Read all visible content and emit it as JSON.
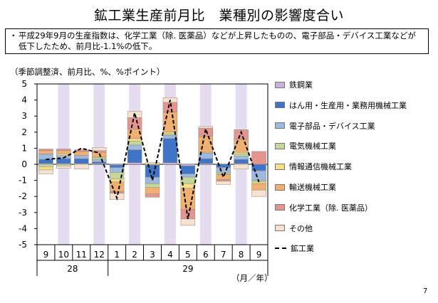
{
  "title": "鉱工業生産前月比　業種別の影響度合い",
  "note": {
    "bullet": "・",
    "text": "平成29年9月の生産指数は、化学工業（除. 医薬品）などが上昇したものの、電子部品・デバイス工業などが低下したため、前月比-1.1%の低下。"
  },
  "unit_label": "（季節調整済、前月比、%、%ポイント）",
  "axis_unit": "（月／年）",
  "page_number": "7",
  "colors": {
    "steel": "#c9b3dd",
    "hanyo": "#3f74c6",
    "electronic": "#9fb8de",
    "electric": "#c5d89a",
    "info": "#f6df86",
    "transport": "#f0b071",
    "chemical": "#e5958f",
    "other": "#f8e2cf",
    "shade": "#e4ddef"
  },
  "chart_data": {
    "type": "bar",
    "stacked": true,
    "ylim": [
      -5,
      5
    ],
    "yticks": [
      "5",
      "4",
      "3",
      "2",
      "1",
      "0",
      "-1",
      "-2",
      "-3",
      "-4",
      "-5"
    ],
    "categories": [
      "9",
      "10",
      "11",
      "12",
      "1",
      "2",
      "3",
      "4",
      "5",
      "6",
      "7",
      "8",
      "9"
    ],
    "year_labels": [
      {
        "label": "28",
        "from": 0,
        "to": 3
      },
      {
        "label": "29",
        "from": 4,
        "to": 12
      }
    ],
    "shaded_columns": [
      1,
      3,
      5,
      7,
      9,
      11
    ],
    "series": [
      {
        "name": "鉄鋼業",
        "key": "steel",
        "values": [
          0.05,
          0.05,
          0.05,
          0.05,
          -0.05,
          0.1,
          -0.05,
          0.1,
          -0.1,
          0.05,
          0.0,
          0.05,
          0.0
        ]
      },
      {
        "name": "はん用・生産用・業務用機械工業",
        "key": "hanyo",
        "values": [
          0.25,
          0.3,
          0.3,
          0.1,
          -0.15,
          0.8,
          -0.75,
          1.5,
          -0.5,
          0.3,
          -0.2,
          0.25,
          -0.4
        ]
      },
      {
        "name": "電子部品・デバイス工業",
        "key": "electronic",
        "values": [
          0.35,
          0.2,
          0.2,
          0.15,
          -0.3,
          0.3,
          -0.4,
          0.2,
          -0.2,
          0.35,
          -0.3,
          0.2,
          -0.6
        ]
      },
      {
        "name": "電気機械工業",
        "key": "electric",
        "values": [
          -0.15,
          -0.1,
          0.0,
          0.1,
          -0.4,
          0.25,
          -0.25,
          0.1,
          -0.4,
          0.0,
          -0.1,
          0.15,
          -0.1
        ]
      },
      {
        "name": "情報通信機械工業",
        "key": "info",
        "values": [
          -0.2,
          0.1,
          0.0,
          0.05,
          -0.2,
          0.15,
          0.1,
          0.1,
          -0.3,
          0.05,
          -0.05,
          0.1,
          -0.1
        ]
      },
      {
        "name": "輸送機械工業",
        "key": "transport",
        "values": [
          0.2,
          0.2,
          0.25,
          0.3,
          -0.6,
          0.6,
          -0.4,
          1.25,
          -1.3,
          1.0,
          -0.3,
          0.8,
          -0.4
        ]
      },
      {
        "name": "化学工業（除. 医薬品）",
        "key": "chemical",
        "values": [
          0.1,
          0.1,
          0.1,
          0.1,
          -0.1,
          0.7,
          -0.2,
          0.6,
          -0.6,
          0.5,
          -0.1,
          0.6,
          0.8
        ]
      },
      {
        "name": "その他",
        "key": "other",
        "values": [
          -0.25,
          -0.15,
          -0.3,
          0.2,
          -0.4,
          0.4,
          0.0,
          0.3,
          -0.4,
          0.1,
          -0.2,
          -0.3,
          -0.4
        ]
      }
    ],
    "line": {
      "name": "鉱工業",
      "values": [
        0.3,
        0.4,
        1.0,
        0.7,
        -2.1,
        3.2,
        -1.0,
        4.0,
        -3.4,
        2.2,
        -0.8,
        2.0,
        -1.1
      ]
    }
  }
}
